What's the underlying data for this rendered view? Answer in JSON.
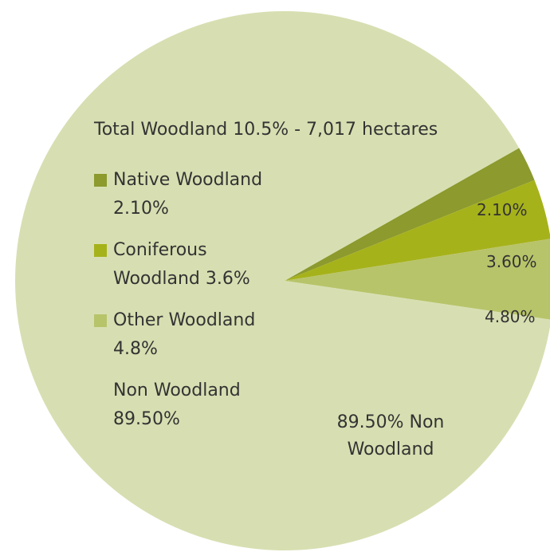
{
  "chart_data": {
    "type": "pie",
    "title": "Total Woodland 10.5% - 7,017 hectares",
    "slices": [
      {
        "name": "Native Woodland",
        "legend_label": "Native Woodland\n2.10%",
        "value": 2.1,
        "label": "2.10%",
        "color": "#8c9a2e"
      },
      {
        "name": "Coniferous Woodland",
        "legend_label": "Coniferous\nWoodland 3.6%",
        "value": 3.6,
        "label": "3.60%",
        "color": "#a6b21a"
      },
      {
        "name": "Other Woodland",
        "legend_label": "Other Woodland\n4.8%",
        "value": 4.8,
        "label": "4.80%",
        "color": "#b8c46a"
      },
      {
        "name": "Non Woodland",
        "legend_label": "Non Woodland\n89.50%",
        "value": 89.5,
        "label": "89.50% Non\nWoodland",
        "color": "#d7dfb2"
      }
    ],
    "legend_position": "left",
    "start_angle_deg": -29.5,
    "direction": "clockwise"
  }
}
